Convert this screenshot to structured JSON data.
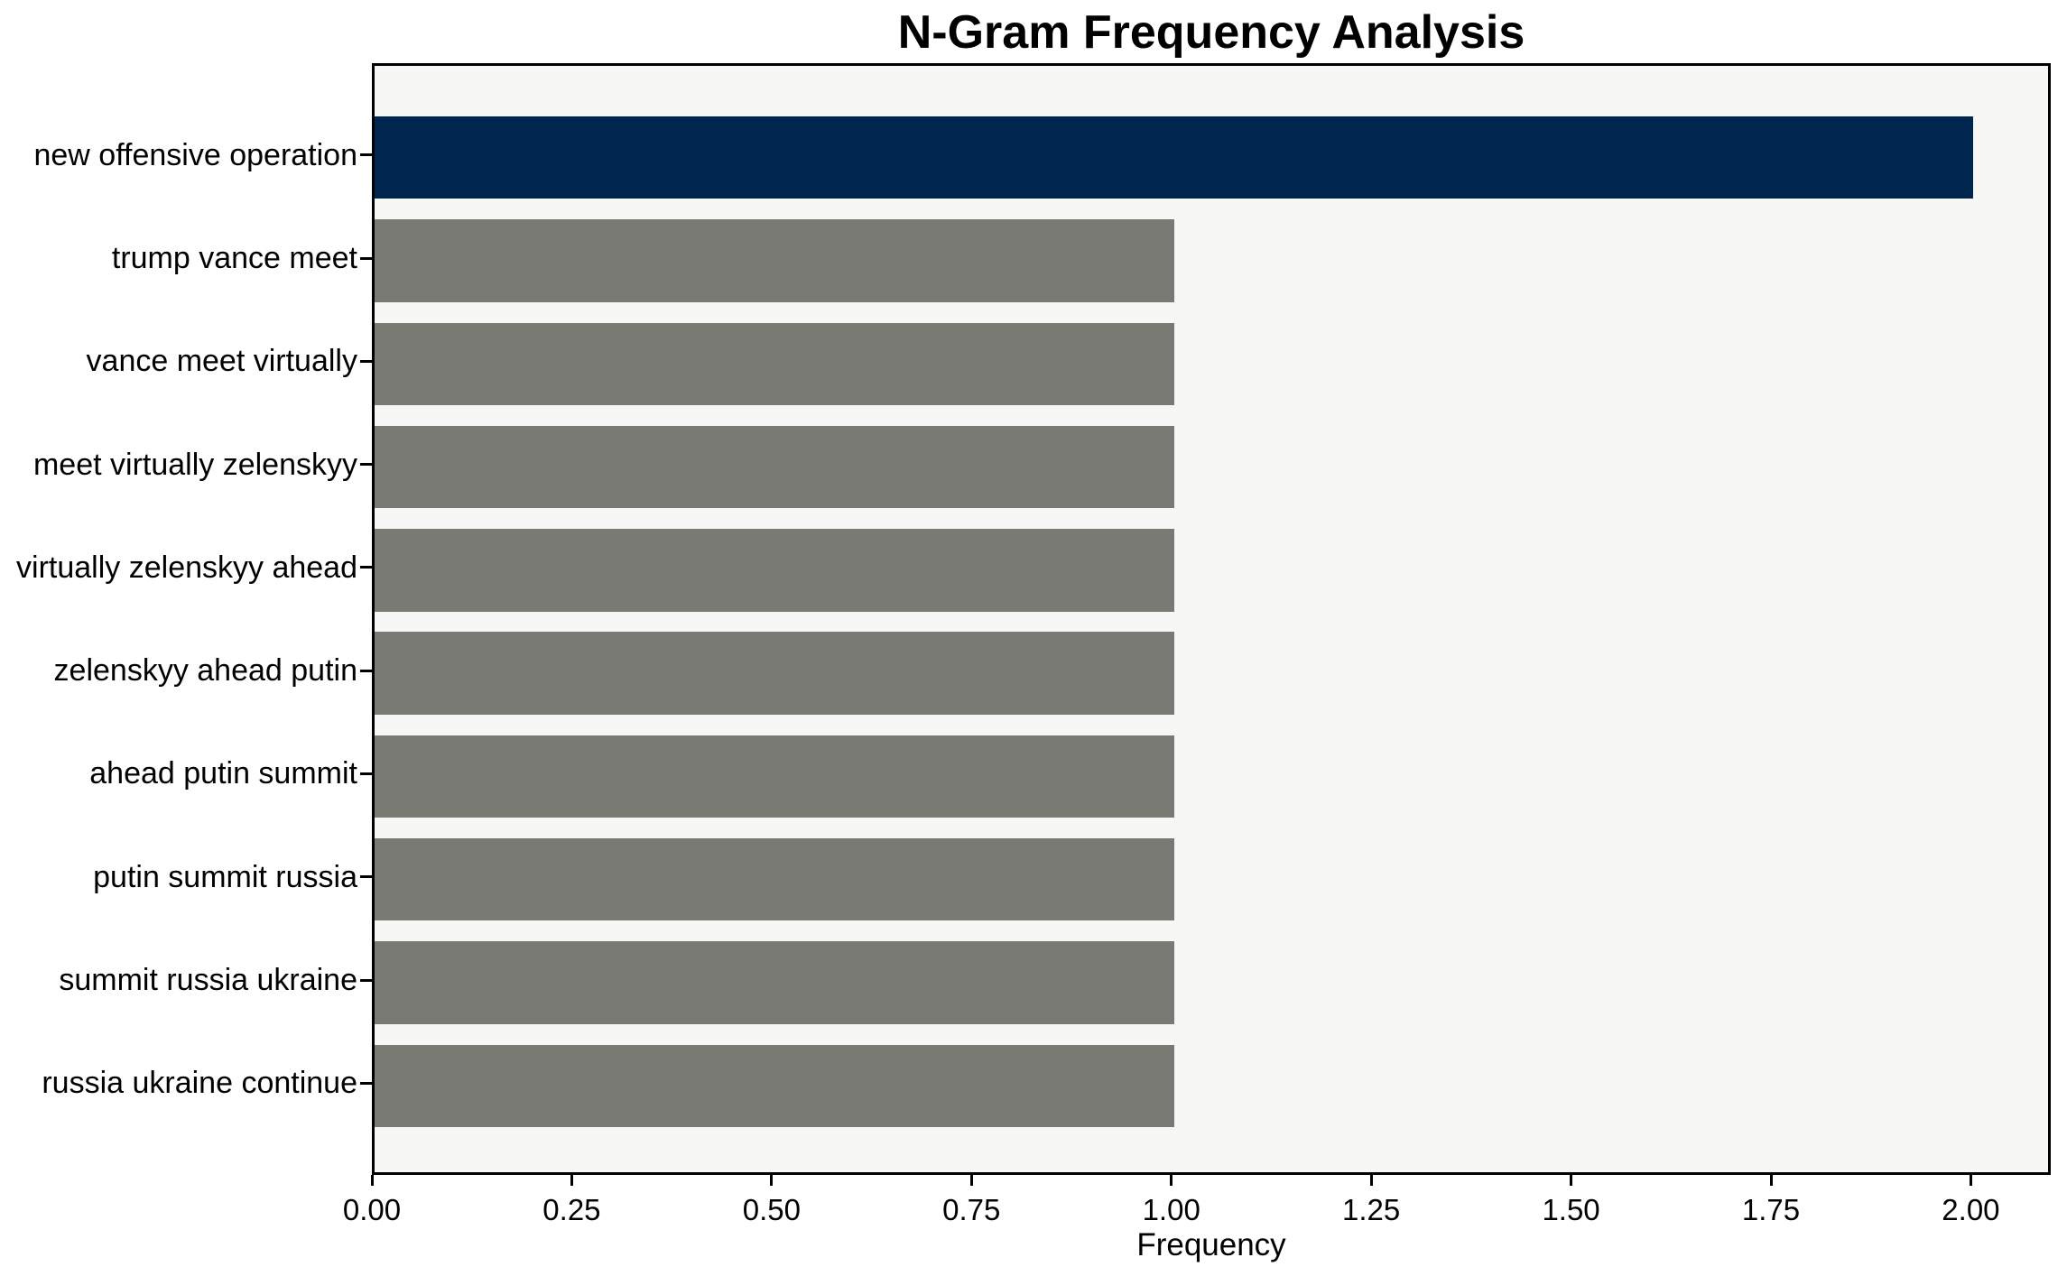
{
  "chart_data": {
    "type": "bar",
    "orientation": "horizontal",
    "title": "N-Gram Frequency Analysis",
    "xlabel": "Frequency",
    "ylabel": "",
    "categories": [
      "new offensive operation",
      "trump vance meet",
      "vance meet virtually",
      "meet virtually zelenskyy",
      "virtually zelenskyy ahead",
      "zelenskyy ahead putin",
      "ahead putin summit",
      "putin summit russia",
      "summit russia ukraine",
      "russia ukraine continue"
    ],
    "values": [
      2,
      1,
      1,
      1,
      1,
      1,
      1,
      1,
      1,
      1
    ],
    "bar_colors": [
      "#00254e",
      "#7a7a75",
      "#7a7a75",
      "#7a7a75",
      "#7a7a75",
      "#7a7a75",
      "#7a7a75",
      "#7a7a75",
      "#7a7a75",
      "#7a7a75"
    ],
    "highlight_color": "#00254e",
    "default_color": "#7a7a75",
    "plot_background": "#f7f7f5",
    "figure_background": "#ffffff",
    "xlim": [
      0,
      2.1
    ],
    "xtick_values": [
      0.0,
      0.25,
      0.5,
      0.75,
      1.0,
      1.25,
      1.5,
      1.75,
      2.0
    ],
    "xtick_labels": [
      "0.00",
      "0.25",
      "0.50",
      "0.75",
      "1.00",
      "1.25",
      "1.50",
      "1.75",
      "2.00"
    ],
    "grid": false,
    "legend": null
  }
}
